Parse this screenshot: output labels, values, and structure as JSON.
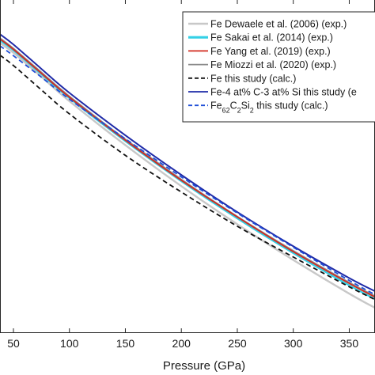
{
  "chart_data": {
    "type": "line",
    "xlabel": "Pressure (GPa)",
    "ylabel": "",
    "xlim": [
      38,
      373
    ],
    "ylim": [
      5.0,
      11.8
    ],
    "x_ticks": [
      "50",
      "100",
      "150",
      "200",
      "250",
      "300",
      "350"
    ],
    "x_tick_values": [
      50,
      100,
      150,
      200,
      250,
      300,
      350
    ],
    "grid": false,
    "legend": {
      "placement": "top-right",
      "entries": [
        {
          "label": "Fe Dewaele et al. (2006) (exp.)",
          "color": "#c8c8c8",
          "style": "solid"
        },
        {
          "label": "Fe Sakai et al. (2014) (exp.)",
          "color": "#33d0e6",
          "style": "solid"
        },
        {
          "label": "Fe Yang et al. (2019) (exp.)",
          "color": "#d22a1e",
          "style": "solid"
        },
        {
          "label": "Fe Miozzi et al. (2020) (exp.)",
          "color": "#8a8a8a",
          "style": "solid"
        },
        {
          "label": "Fe this study (calc.)",
          "color": "#111111",
          "style": "dashed"
        },
        {
          "label": "Fe-4 at% C-3 at% Si this study (e",
          "color": "#1f2ba8",
          "style": "solid"
        },
        {
          "label": "Fe62C2Si2 this study (calc.)",
          "color": "#1f4ed8",
          "style": "dashed"
        }
      ],
      "formula_entry": {
        "prefix": "Fe",
        "sub1": "62",
        "mid1": "C",
        "sub2": "2",
        "mid2": "Si",
        "sub3": "2",
        "suffix": " this study (calc.)"
      }
    },
    "series": [
      {
        "name": "Fe Dewaele et al. (2006) (exp.)",
        "color": "#c8c8c8",
        "dash": false,
        "width": 2.4,
        "x": [
          38,
          50,
          75,
          100,
          150,
          200,
          250,
          300,
          350,
          373
        ],
        "y": [
          10.92,
          10.72,
          10.23,
          9.73,
          8.83,
          7.99,
          7.21,
          6.48,
          5.79,
          5.5
        ]
      },
      {
        "name": "Fe Sakai et al. (2014) (exp.)",
        "color": "#33d0e6",
        "dash": false,
        "width": 2.2,
        "x": [
          38,
          50,
          75,
          100,
          150,
          200,
          250,
          300,
          350,
          373
        ],
        "y": [
          10.97,
          10.77,
          10.28,
          9.79,
          8.91,
          8.09,
          7.33,
          6.62,
          5.96,
          5.68
        ]
      },
      {
        "name": "Fe Miozzi et al. (2020) (exp.)",
        "color": "#8a8a8a",
        "dash": false,
        "width": 1.8,
        "x": [
          38,
          50,
          75,
          100,
          150,
          200,
          250,
          300,
          350,
          373
        ],
        "y": [
          11.02,
          10.81,
          10.32,
          9.83,
          8.95,
          8.13,
          7.37,
          6.67,
          6.02,
          5.74
        ]
      },
      {
        "name": "Fe Yang et al. (2019) (exp.)",
        "color": "#d22a1e",
        "dash": false,
        "width": 1.8,
        "x": [
          38,
          50,
          75,
          100,
          150,
          200,
          250,
          300,
          350,
          373
        ],
        "y": [
          11.0,
          10.79,
          10.3,
          9.81,
          8.93,
          8.11,
          7.36,
          6.65,
          6.0,
          5.72
        ]
      },
      {
        "name": "Fe this study (calc.)",
        "color": "#111111",
        "dash": true,
        "width": 1.8,
        "x": [
          38,
          50,
          75,
          100,
          150,
          200,
          250,
          300,
          350,
          373
        ],
        "y": [
          10.67,
          10.46,
          9.96,
          9.47,
          8.62,
          7.87,
          7.17,
          6.54,
          5.93,
          5.67
        ]
      },
      {
        "name": "Fe-4 at% C-3 at% Si this study (e",
        "color": "#1f2ba8",
        "dash": false,
        "width": 2.0,
        "x": [
          38,
          50,
          75,
          100,
          150,
          200,
          250,
          300,
          350,
          373
        ],
        "y": [
          11.1,
          10.89,
          10.39,
          9.9,
          9.03,
          8.22,
          7.46,
          6.76,
          6.11,
          5.84
        ]
      },
      {
        "name": "Fe62C2Si2 this study (calc.)",
        "color": "#1f4ed8",
        "dash": true,
        "width": 1.8,
        "x": [
          38,
          50,
          75,
          100,
          150,
          200,
          250,
          300,
          350,
          373
        ],
        "y": [
          10.86,
          10.66,
          10.22,
          9.77,
          8.96,
          8.18,
          7.44,
          6.74,
          6.06,
          5.77
        ]
      }
    ]
  }
}
